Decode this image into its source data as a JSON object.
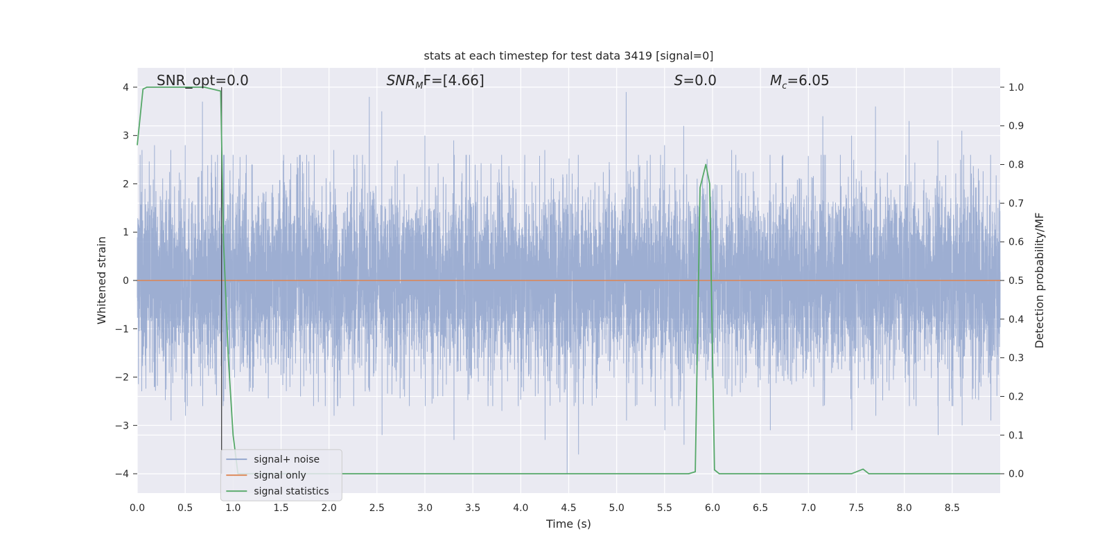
{
  "chart_data": {
    "type": "line",
    "title": "stats at each timestep for test data 3419 [signal=0]",
    "xlabel": "Time (s)",
    "ylabel_left": "Whitened strain",
    "ylabel_right": "Detection probability/MF",
    "xlim": [
      0.0,
      9.0
    ],
    "ylim_left": [
      -4.4,
      4.4
    ],
    "ylim_right": [
      -0.05,
      1.05
    ],
    "x_ticks": [
      "0.0",
      "0.5",
      "1.0",
      "1.5",
      "2.0",
      "2.5",
      "3.0",
      "3.5",
      "4.0",
      "4.5",
      "5.0",
      "5.5",
      "6.0",
      "6.5",
      "7.0",
      "7.5",
      "8.0",
      "8.5"
    ],
    "y_left_ticks": [
      "4",
      "3",
      "2",
      "1",
      "0",
      "−1",
      "−2",
      "−3",
      "−4"
    ],
    "y_right_ticks": [
      "1.0",
      "0.9",
      "0.8",
      "0.7",
      "0.6",
      "0.5",
      "0.4",
      "0.3",
      "0.2",
      "0.1",
      "0.0"
    ],
    "annotations": {
      "snr_opt": "SNR_opt=0.0",
      "snr_mf_main": "SNR",
      "snr_mf_sub": "M",
      "snr_mf_rest": "F=[4.66]",
      "s_main": "S",
      "s_rest": "=0.0",
      "mc_main": "M",
      "mc_sub": "c",
      "mc_rest": "=6.05"
    },
    "grid": true,
    "legend_position": "lower-left",
    "colors": {
      "noise": "#8fa3cc",
      "signal": "#dd8452",
      "stats": "#55a868",
      "background": "#eaeaf2",
      "grid": "#ffffff",
      "threshold": "#333333"
    },
    "series": [
      {
        "name": "signal+ noise",
        "axis": "left",
        "note_amplitude": "noisy whitened strain, approx range -4 to 4, peaks up to ~3.9",
        "peaks": [
          [
            0.05,
            2.7,
            -1.7
          ],
          [
            0.18,
            2.8,
            -2.2
          ],
          [
            0.35,
            2.7,
            -2.9
          ],
          [
            0.5,
            2.8,
            -2.8
          ],
          [
            0.68,
            3.7,
            -2.6
          ],
          [
            0.9,
            2.6,
            -2.5
          ],
          [
            1.2,
            2.4,
            -2.3
          ],
          [
            1.7,
            2.6,
            -2.4
          ],
          [
            2.05,
            2.7,
            -2.8
          ],
          [
            2.42,
            3.8,
            -2.3
          ],
          [
            2.55,
            3.5,
            -3.2
          ],
          [
            3.0,
            3.0,
            -2.6
          ],
          [
            3.3,
            2.9,
            -3.3
          ],
          [
            3.8,
            2.6,
            -2.7
          ],
          [
            4.25,
            2.7,
            -3.3
          ],
          [
            4.48,
            2.2,
            -4.0
          ],
          [
            4.6,
            2.6,
            -3.6
          ],
          [
            5.1,
            3.9,
            -2.9
          ],
          [
            5.5,
            2.8,
            -3.1
          ],
          [
            5.7,
            3.2,
            -3.4
          ],
          [
            6.2,
            2.7,
            -2.4
          ],
          [
            6.6,
            2.6,
            -3.1
          ],
          [
            7.15,
            3.4,
            -2.6
          ],
          [
            7.45,
            3.0,
            -3.1
          ],
          [
            7.7,
            3.6,
            -2.8
          ],
          [
            8.05,
            3.3,
            -2.6
          ],
          [
            8.35,
            2.9,
            -3.2
          ],
          [
            8.6,
            3.1,
            -3.0
          ],
          [
            8.9,
            2.6,
            -2.9
          ]
        ]
      },
      {
        "name": "signal only",
        "axis": "left",
        "x": [
          0.0,
          9.0
        ],
        "y": [
          0.0,
          0.0
        ]
      },
      {
        "name": "signal statistics",
        "axis": "right",
        "x": [
          0.0,
          0.06,
          0.1,
          0.2,
          0.5,
          0.7,
          0.87,
          0.9,
          0.95,
          1.0,
          1.05,
          2.0,
          3.0,
          4.0,
          5.0,
          5.75,
          5.82,
          5.87,
          5.93,
          5.97,
          6.02,
          6.07,
          7.0,
          7.45,
          7.57,
          7.63,
          8.0,
          9.0
        ],
        "y": [
          0.85,
          0.995,
          1.0,
          1.0,
          1.0,
          1.0,
          0.99,
          0.6,
          0.3,
          0.1,
          0.0,
          0.0,
          0.0,
          0.0,
          0.0,
          0.0,
          0.005,
          0.74,
          0.8,
          0.75,
          0.01,
          0.0,
          0.0,
          0.0,
          0.012,
          0.0,
          0.0,
          0.0
        ]
      },
      {
        "name": "threshold",
        "axis": "left",
        "x": [
          0.88,
          0.88
        ],
        "y": [
          -4.0,
          4.0
        ]
      }
    ],
    "legend": [
      "signal+ noise",
      "signal only",
      "signal statistics"
    ]
  }
}
